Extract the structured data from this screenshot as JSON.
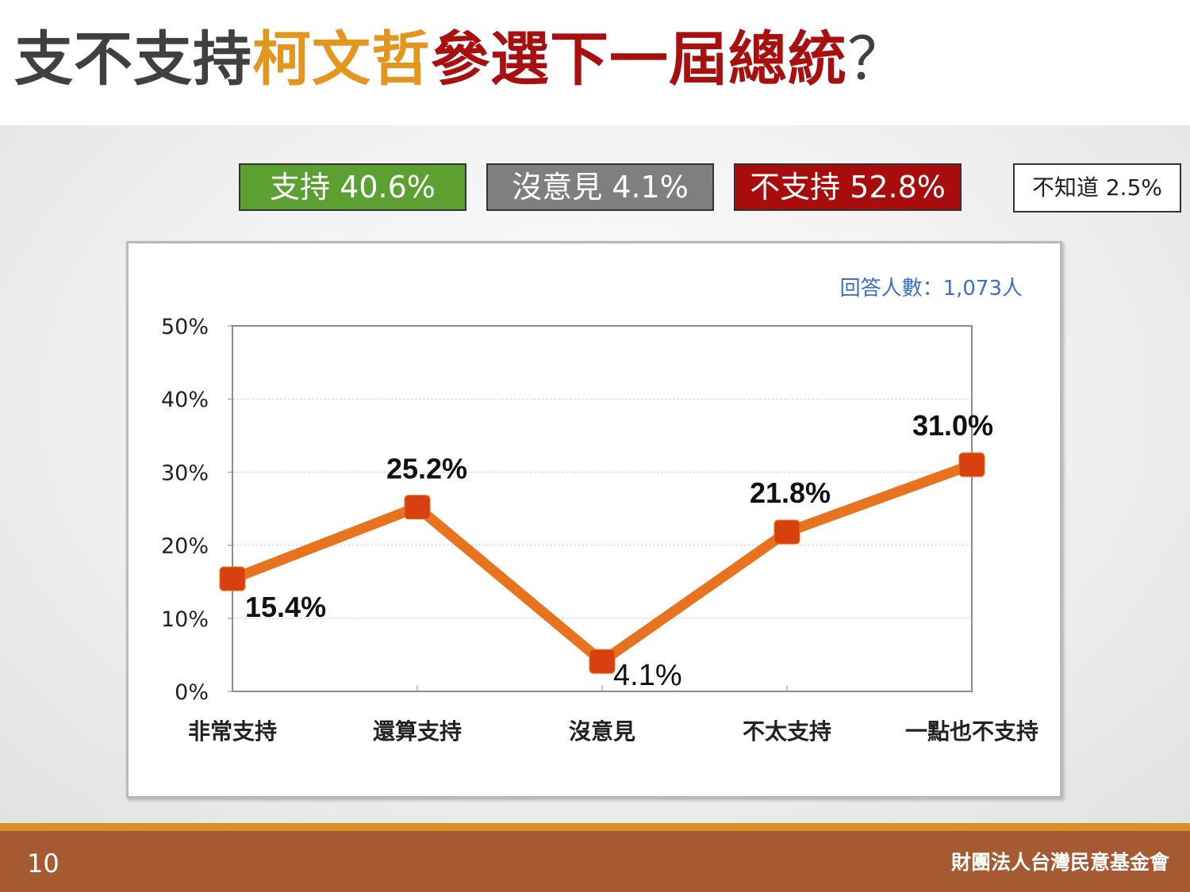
{
  "title": {
    "part1": "支不支持",
    "part2": "柯文哲",
    "part3": "參選下一屆總統",
    "part4": "？"
  },
  "summary": {
    "support": "支持 40.6%",
    "no_opinion": "沒意見 4.1%",
    "oppose": "不支持 52.8%",
    "dont_know": "不知道 2.5%"
  },
  "respondents": "回答人數：1,073人",
  "chart_data": {
    "type": "line",
    "categories": [
      "非常支持",
      "還算支持",
      "沒意見",
      "不太支持",
      "一點也不支持"
    ],
    "values": [
      15.4,
      25.2,
      4.1,
      21.8,
      31.0
    ],
    "value_labels": [
      "15.4%",
      "25.2%",
      "4.1%",
      "21.8%",
      "31.0%"
    ],
    "yticks": [
      "0%",
      "10%",
      "20%",
      "30%",
      "40%",
      "50%"
    ],
    "ylim": [
      0,
      50
    ],
    "grid": true,
    "line_color": "#e8731e",
    "marker_color": "#d9400f",
    "title": "",
    "xlabel": "",
    "ylabel": ""
  },
  "footer": {
    "page": "10",
    "org": "財團法人台灣民意基金會"
  }
}
